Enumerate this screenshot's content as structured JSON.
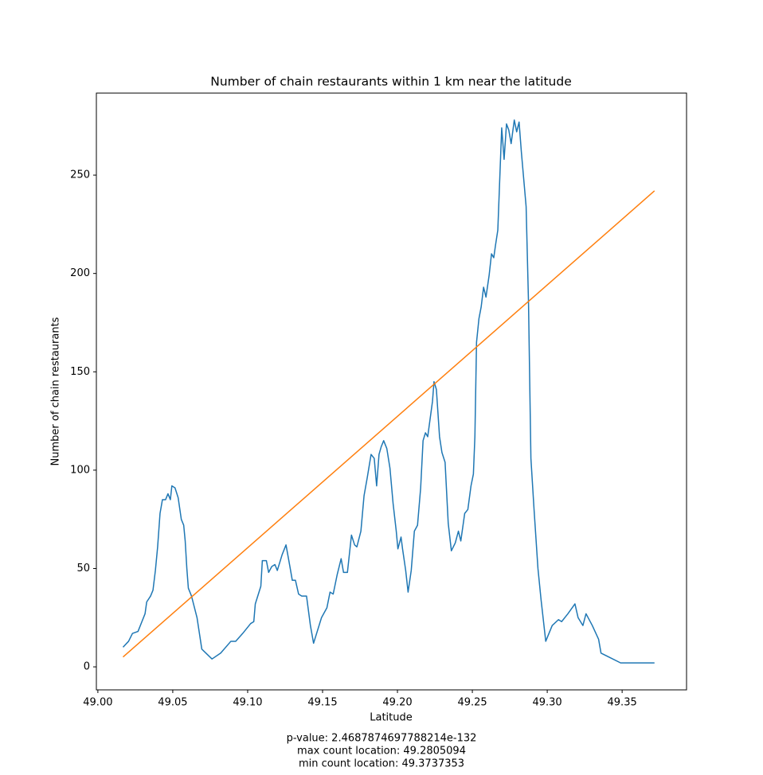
{
  "chart_data": {
    "type": "line",
    "title": "Number of chain restaurants within 1 km near the latitude",
    "x_label": "Latitude",
    "y_label": "Number of chain restaurants",
    "footer": [
      "p-value: 2.4687874697788214e-132",
      "max count location: 49.2805094",
      "min count location: 49.3737353"
    ],
    "xlim": [
      48.999,
      49.393
    ],
    "ylim": [
      -11.7,
      291.7
    ],
    "xticks": [
      {
        "value": 49.0,
        "label": "49.00"
      },
      {
        "value": 49.05,
        "label": "49.05"
      },
      {
        "value": 49.1,
        "label": "49.10"
      },
      {
        "value": 49.15,
        "label": "49.15"
      },
      {
        "value": 49.2,
        "label": "49.20"
      },
      {
        "value": 49.25,
        "label": "49.25"
      },
      {
        "value": 49.3,
        "label": "49.30"
      },
      {
        "value": 49.35,
        "label": "49.35"
      }
    ],
    "yticks": [
      0,
      50,
      100,
      150,
      200,
      250
    ],
    "grid": false,
    "series": [
      {
        "color": "#1f77b4",
        "x": [
          49.0168,
          49.0205,
          49.0231,
          49.0268,
          49.0294,
          49.0315,
          49.0326,
          49.0352,
          49.0368,
          49.0384,
          49.0399,
          49.0415,
          49.0431,
          49.0452,
          49.0468,
          49.0484,
          49.0494,
          49.0515,
          49.0536,
          49.0557,
          49.0573,
          49.0583,
          49.0594,
          49.0604,
          49.0625,
          49.0662,
          49.0694,
          49.0762,
          49.082,
          49.0888,
          49.092,
          49.0967,
          49.102,
          49.1041,
          49.1051,
          49.1088,
          49.1098,
          49.1125,
          49.114,
          49.1161,
          49.1182,
          49.1198,
          49.123,
          49.1256,
          49.1282,
          49.1298,
          49.1319,
          49.134,
          49.1361,
          49.1393,
          49.1419,
          49.144,
          49.1493,
          49.1529,
          49.155,
          49.1571,
          49.1598,
          49.1624,
          49.164,
          49.1666,
          49.1693,
          49.1714,
          49.1729,
          49.1756,
          49.1777,
          49.1798,
          49.1824,
          49.1845,
          49.1861,
          49.1877,
          49.1892,
          49.1908,
          49.1929,
          49.195,
          49.1971,
          49.1992,
          49.2003,
          49.2024,
          49.2034,
          49.2055,
          49.2071,
          49.2092,
          49.2113,
          49.2134,
          49.2155,
          49.2171,
          49.2187,
          49.2202,
          49.2218,
          49.2234,
          49.2244,
          49.226,
          49.2281,
          49.2297,
          49.2318,
          49.2339,
          49.236,
          49.2386,
          49.2407,
          49.2423,
          49.2449,
          49.247,
          49.2491,
          49.2507,
          49.2517,
          49.2528,
          49.2544,
          49.2559,
          49.2575,
          49.2591,
          49.2612,
          49.2628,
          49.2643,
          49.2654,
          49.267,
          49.268,
          49.2696,
          49.2712,
          49.2728,
          49.2743,
          49.2759,
          49.278,
          49.2796,
          49.2812,
          49.2827,
          49.2843,
          49.2859,
          49.2875,
          49.2891,
          49.2912,
          49.2938,
          49.2959,
          49.299,
          49.3033,
          49.3075,
          49.3096,
          49.3138,
          49.3185,
          49.3206,
          49.3238,
          49.3259,
          49.3301,
          49.3343,
          49.3359,
          49.349,
          49.3716
        ],
        "values": [
          10,
          13,
          17,
          18,
          23,
          27,
          33,
          36,
          39,
          49,
          61,
          78,
          85,
          85,
          88,
          85,
          92,
          91,
          86,
          75,
          72,
          64,
          50,
          40,
          36,
          25,
          9,
          4,
          7,
          13,
          13,
          17,
          22,
          23,
          32,
          41,
          54,
          54,
          48,
          51,
          52,
          49,
          57,
          62,
          51,
          44,
          44,
          37,
          36,
          36,
          21,
          12,
          25,
          30,
          38,
          37,
          47,
          55,
          48,
          48,
          67,
          62,
          61,
          69,
          87,
          96,
          108,
          106,
          92,
          108,
          112,
          115,
          111,
          101,
          83,
          69,
          60,
          66,
          60,
          49,
          38,
          49,
          69,
          72,
          91,
          115,
          119,
          117,
          126,
          135,
          145,
          141,
          117,
          109,
          104,
          73,
          59,
          63,
          69,
          64,
          78,
          80,
          92,
          98,
          117,
          165,
          177,
          183,
          193,
          188,
          199,
          210,
          208,
          214,
          222,
          242,
          274,
          258,
          276,
          273,
          266,
          278,
          272,
          277,
          262,
          248,
          234,
          185,
          106,
          80,
          50,
          34,
          13,
          21,
          24,
          23,
          27,
          32,
          25,
          21,
          27,
          21,
          14,
          7,
          2,
          2
        ]
      },
      {
        "color": "#ff7f0e",
        "x": [
          49.0168,
          49.3716
        ],
        "values": [
          5,
          242
        ]
      }
    ]
  }
}
